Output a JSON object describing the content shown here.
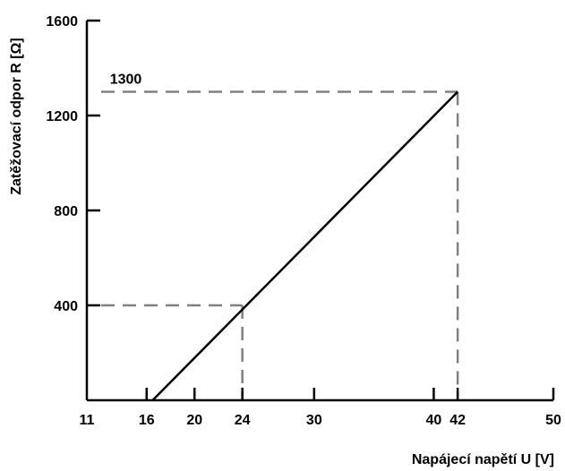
{
  "chart_data": {
    "type": "line",
    "title": "",
    "xlabel": "Napájecí napětí U [V]",
    "ylabel": "Zatěžovací odpor R [Ω]",
    "xlim": [
      11,
      50
    ],
    "ylim": [
      0,
      1600
    ],
    "x_ticks": [
      11,
      16,
      20,
      24,
      30,
      40,
      42,
      50
    ],
    "y_ticks": [
      400,
      800,
      1200,
      1600
    ],
    "grid": false,
    "legend": "none",
    "series": [
      {
        "x": [
          16.5,
          42
        ],
        "y": [
          0,
          1300
        ]
      }
    ],
    "reference_lines": [
      {
        "x": 24,
        "y": 400
      },
      {
        "x": 42,
        "y": 1300
      }
    ],
    "annotations": [
      {
        "text": "1300",
        "x": 13,
        "y": 1300
      }
    ],
    "colors": {
      "line": "#000000",
      "reference": "#808080",
      "axis": "#000000"
    }
  }
}
